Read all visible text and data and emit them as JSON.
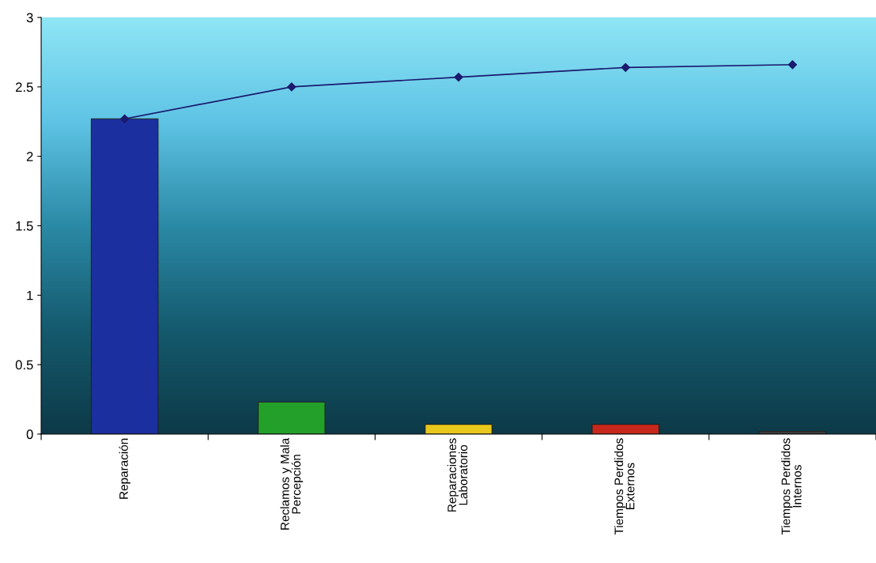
{
  "chart_data": {
    "type": "bar",
    "categories": [
      "Reparación",
      "Reclamos y Mala\nPercepción",
      "Reparaciones\nLaboratorio",
      "Tiempos Perdidos\nExternos",
      "Tiempos Perdidos\nInternos"
    ],
    "series": [
      {
        "colors": [
          "#1c2f9e",
          "#22a02a",
          "#e8c81c",
          "#c8281c",
          "#3a3a3a"
        ],
        "values": [
          2.27,
          0.23,
          0.07,
          0.07,
          0.02
        ]
      },
      {
        "type": "line",
        "color": "#1a1a6e",
        "marker": "diamond",
        "values": [
          2.27,
          2.5,
          2.57,
          2.64,
          2.66
        ]
      }
    ],
    "ylim": [
      0,
      3
    ],
    "yticks": [
      0,
      0.5,
      1,
      1.5,
      2,
      2.5,
      3
    ],
    "grid": false,
    "legend": false
  }
}
